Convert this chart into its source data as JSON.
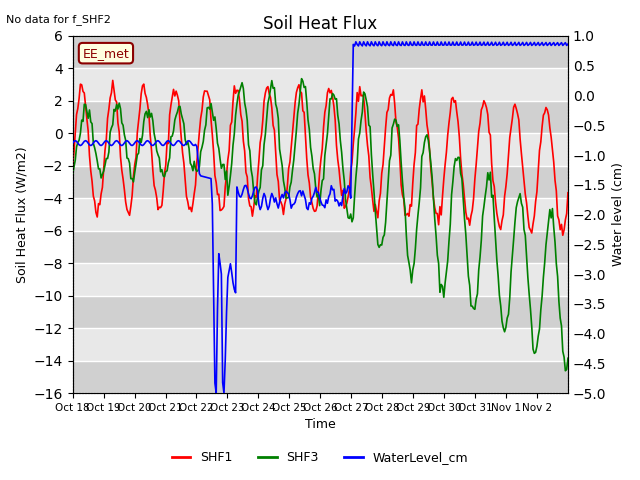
{
  "title": "Soil Heat Flux",
  "no_data_text": "No data for f_SHF2",
  "ylabel_left": "Soil Heat Flux (W/m2)",
  "ylabel_right": "Water level (cm)",
  "xlabel": "Time",
  "ylim_left": [
    -16,
    6
  ],
  "ylim_right": [
    -5.0,
    1.0
  ],
  "yticks_left": [
    -16,
    -14,
    -12,
    -10,
    -8,
    -6,
    -4,
    -2,
    0,
    2,
    4,
    6
  ],
  "yticks_right": [
    -5.0,
    -4.5,
    -4.0,
    -3.5,
    -3.0,
    -2.5,
    -2.0,
    -1.5,
    -1.0,
    -0.5,
    0.0,
    0.5,
    1.0
  ],
  "xtick_labels": [
    "Oct 18",
    "Oct 19",
    "Oct 20",
    "Oct 21",
    "Oct 22",
    "Oct 23",
    "Oct 24",
    "Oct 25",
    "Oct 26",
    "Oct 27",
    "Oct 28",
    "Oct 29",
    "Oct 30",
    "Oct 31",
    "Nov 1",
    "Nov 2"
  ],
  "station_label": "EE_met",
  "legend_entries": [
    "SHF1",
    "SHF3",
    "WaterLevel_cm"
  ],
  "legend_colors": [
    "red",
    "green",
    "blue"
  ],
  "plot_bg_color": "#e8e8e8",
  "stripe_color": "#d0d0d0",
  "grid_color": "white",
  "color_SHF1": "red",
  "color_SHF3": "green",
  "color_Water": "blue"
}
